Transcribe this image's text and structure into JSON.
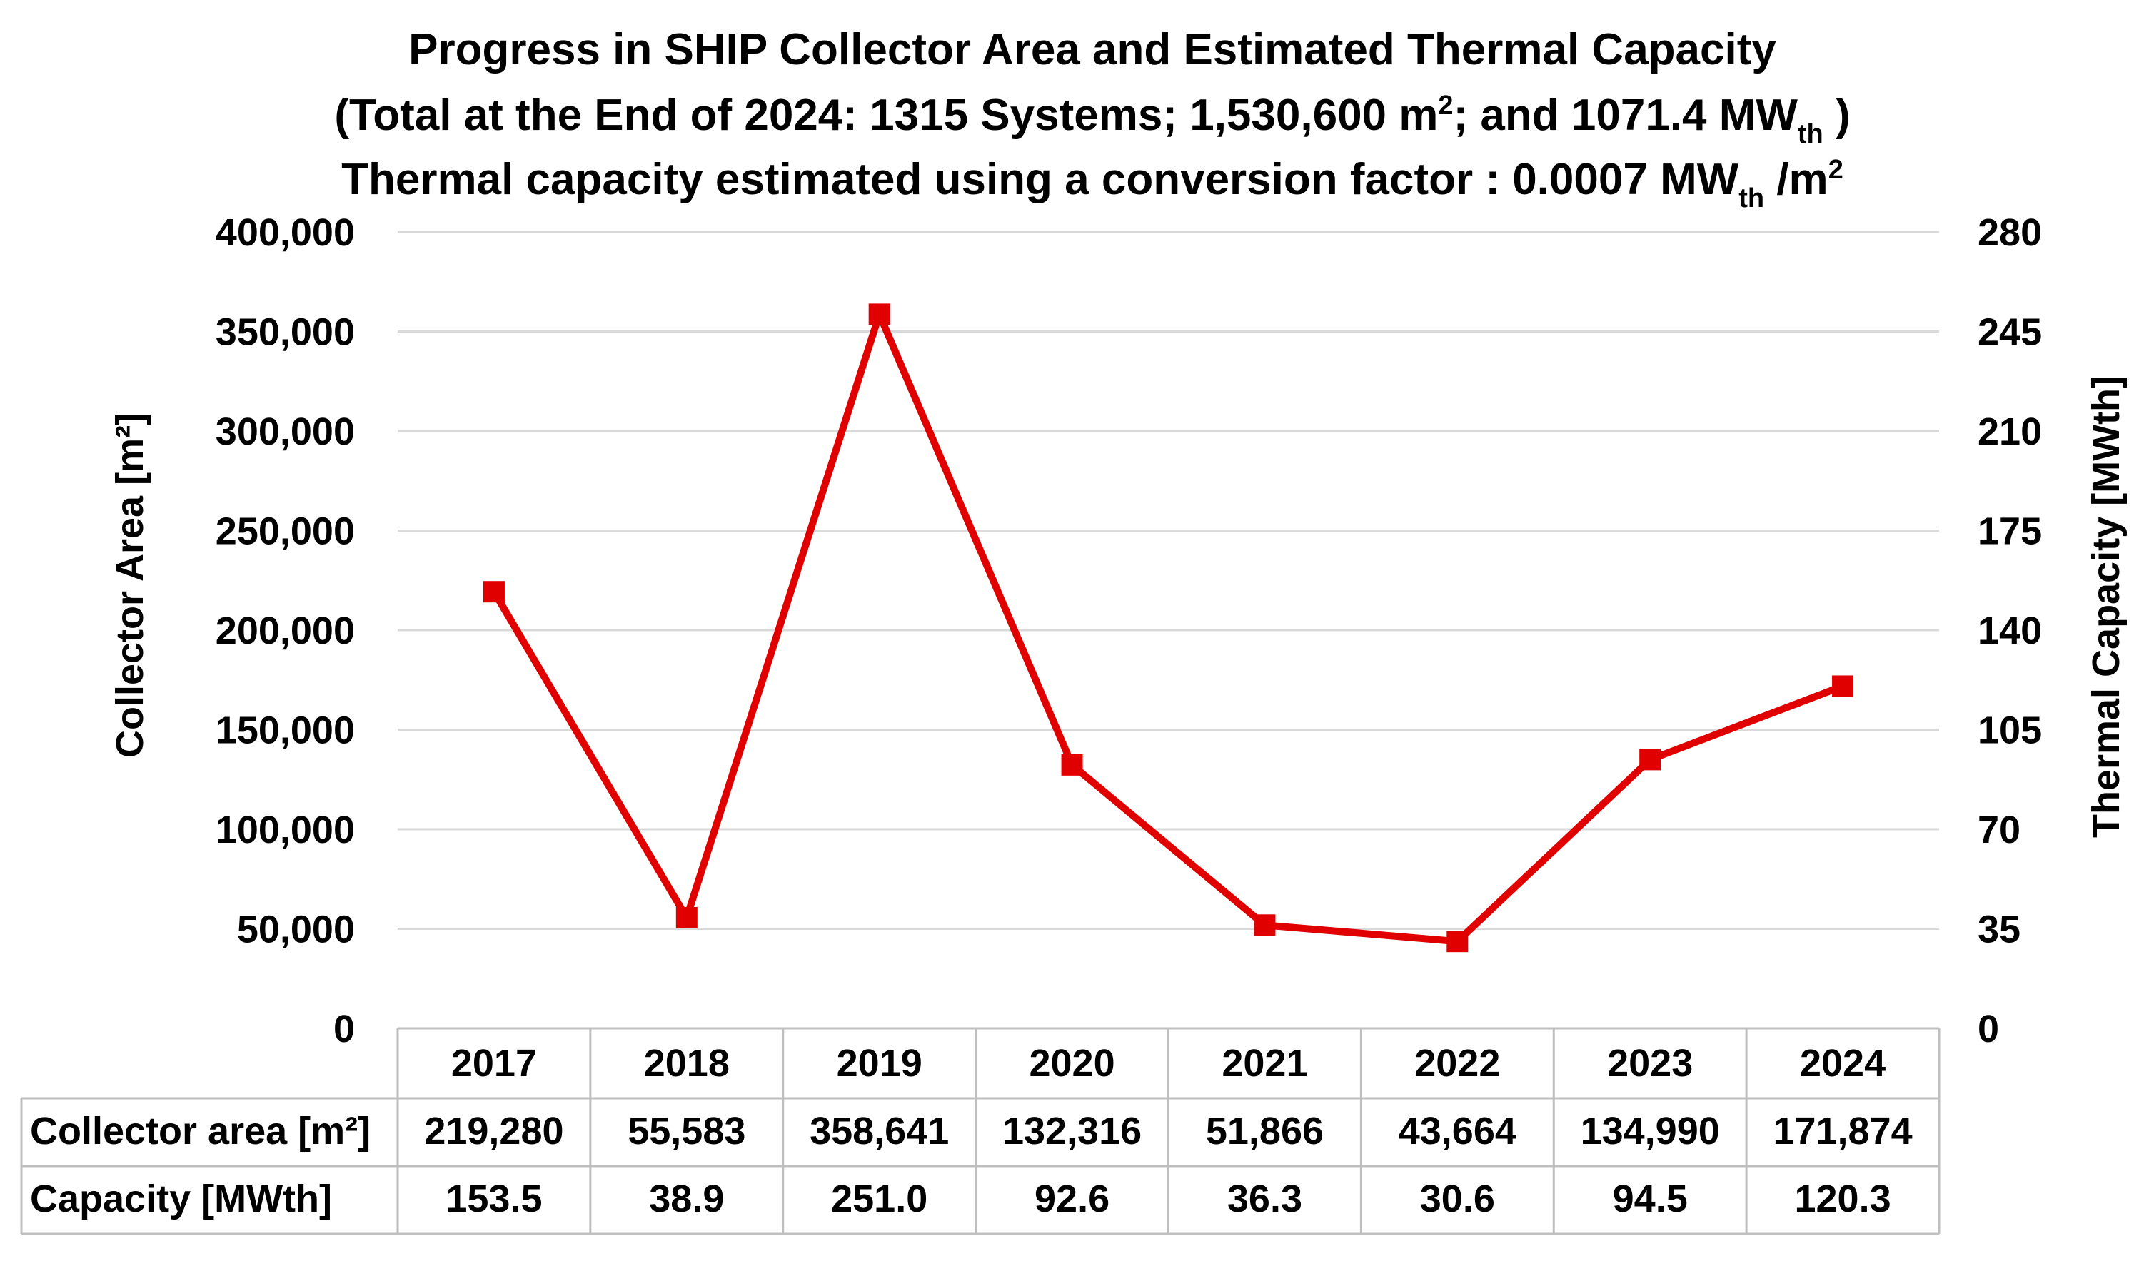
{
  "chart_data": {
    "type": "line",
    "title_line1": "Progress in SHIP Collector Area and Estimated Thermal Capacity",
    "title_line2": {
      "prefix": "(Total at the End of 2024: 1315 Systems; 1,530,600 m",
      "sup": "2",
      "middle": "; and 1071.4 MW",
      "sub": "th",
      "suffix": ")"
    },
    "title_line3": {
      "prefix": "Thermal capacity estimated using a conversion factor : 0.0007 MW",
      "sub": "th",
      "middle": "/m",
      "sup": "2"
    },
    "ylabel_left": "Collector Area [m²]",
    "ylabel_right": "Thermal Capacity [MWth]",
    "ylim_left": [
      0,
      400000
    ],
    "ylim_right": [
      0,
      280
    ],
    "yticks_left": [
      "0",
      "50,000",
      "100,000",
      "150,000",
      "200,000",
      "250,000",
      "300,000",
      "350,000",
      "400,000"
    ],
    "yticks_right": [
      "0",
      "35",
      "70",
      "105",
      "140",
      "175",
      "210",
      "245",
      "280"
    ],
    "grid": true,
    "categories": [
      "2017",
      "2018",
      "2019",
      "2020",
      "2021",
      "2022",
      "2023",
      "2024"
    ],
    "series": [
      {
        "name": "Collector area [m²]",
        "axis": "left",
        "plotted": true,
        "values": [
          219280,
          55583,
          358641,
          132316,
          51866,
          43664,
          134990,
          171874
        ],
        "labels": [
          "219,280",
          "55,583",
          "358,641",
          "132,316",
          "51,866",
          "43,664",
          "134,990",
          "171,874"
        ]
      },
      {
        "name": "Capacity [MWth]",
        "axis": "right",
        "plotted": false,
        "values": [
          153.5,
          38.9,
          251.0,
          92.6,
          36.3,
          30.6,
          94.5,
          120.3
        ],
        "labels": [
          "153.5",
          "38.9",
          "251.0",
          "92.6",
          "36.3",
          "30.6",
          "94.5",
          "120.3"
        ]
      }
    ],
    "line_color": "#e00000",
    "grid_color": "#d9d9d9",
    "border_color": "#bfbfbf",
    "data_table": true
  }
}
